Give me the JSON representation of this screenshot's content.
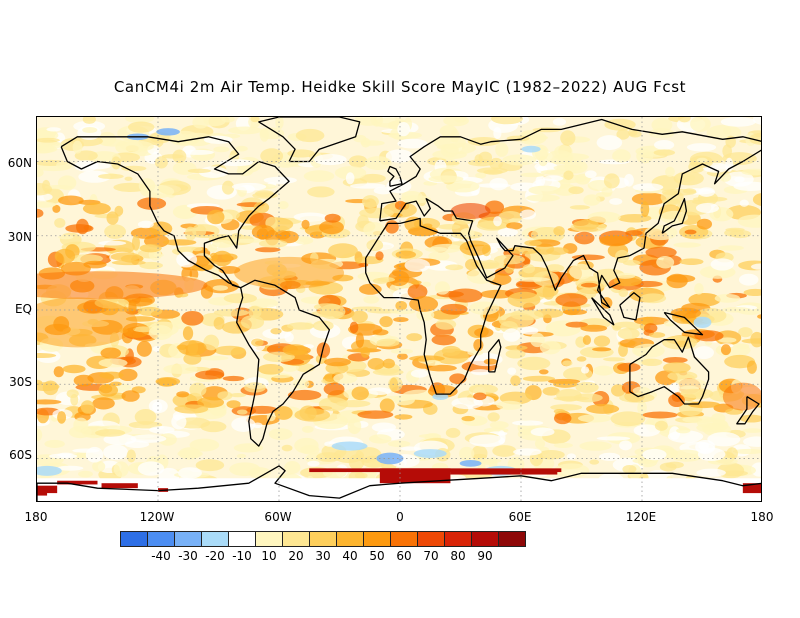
{
  "title": "CanCM4i 2m Air Temp. Heidke Skill Score MayIC (1982–2022) AUG Fcst",
  "map": {
    "projection": "equirectangular",
    "lat_labels": [
      "60N",
      "30N",
      "EQ",
      "30S",
      "60S"
    ],
    "lon_labels": [
      "180",
      "120W",
      "60W",
      "0",
      "60E",
      "120E",
      "180"
    ],
    "gridlines": "dotted"
  },
  "colorbar": {
    "labels": [
      "-40",
      "-30",
      "-20",
      "-10",
      "10",
      "20",
      "30",
      "40",
      "50",
      "60",
      "70",
      "80",
      "90"
    ],
    "colors": [
      "#2e6fe6",
      "#4d8ef2",
      "#78b1f7",
      "#aadbf8",
      "#ffffff",
      "#fff6bf",
      "#fee793",
      "#fecf5c",
      "#fdb52f",
      "#fd9a10",
      "#f97306",
      "#ee4906",
      "#d92407",
      "#b50c07",
      "#8e0808"
    ]
  },
  "colors": {
    "land_outline": "#000000",
    "background_skill": "#fff6d8"
  }
}
